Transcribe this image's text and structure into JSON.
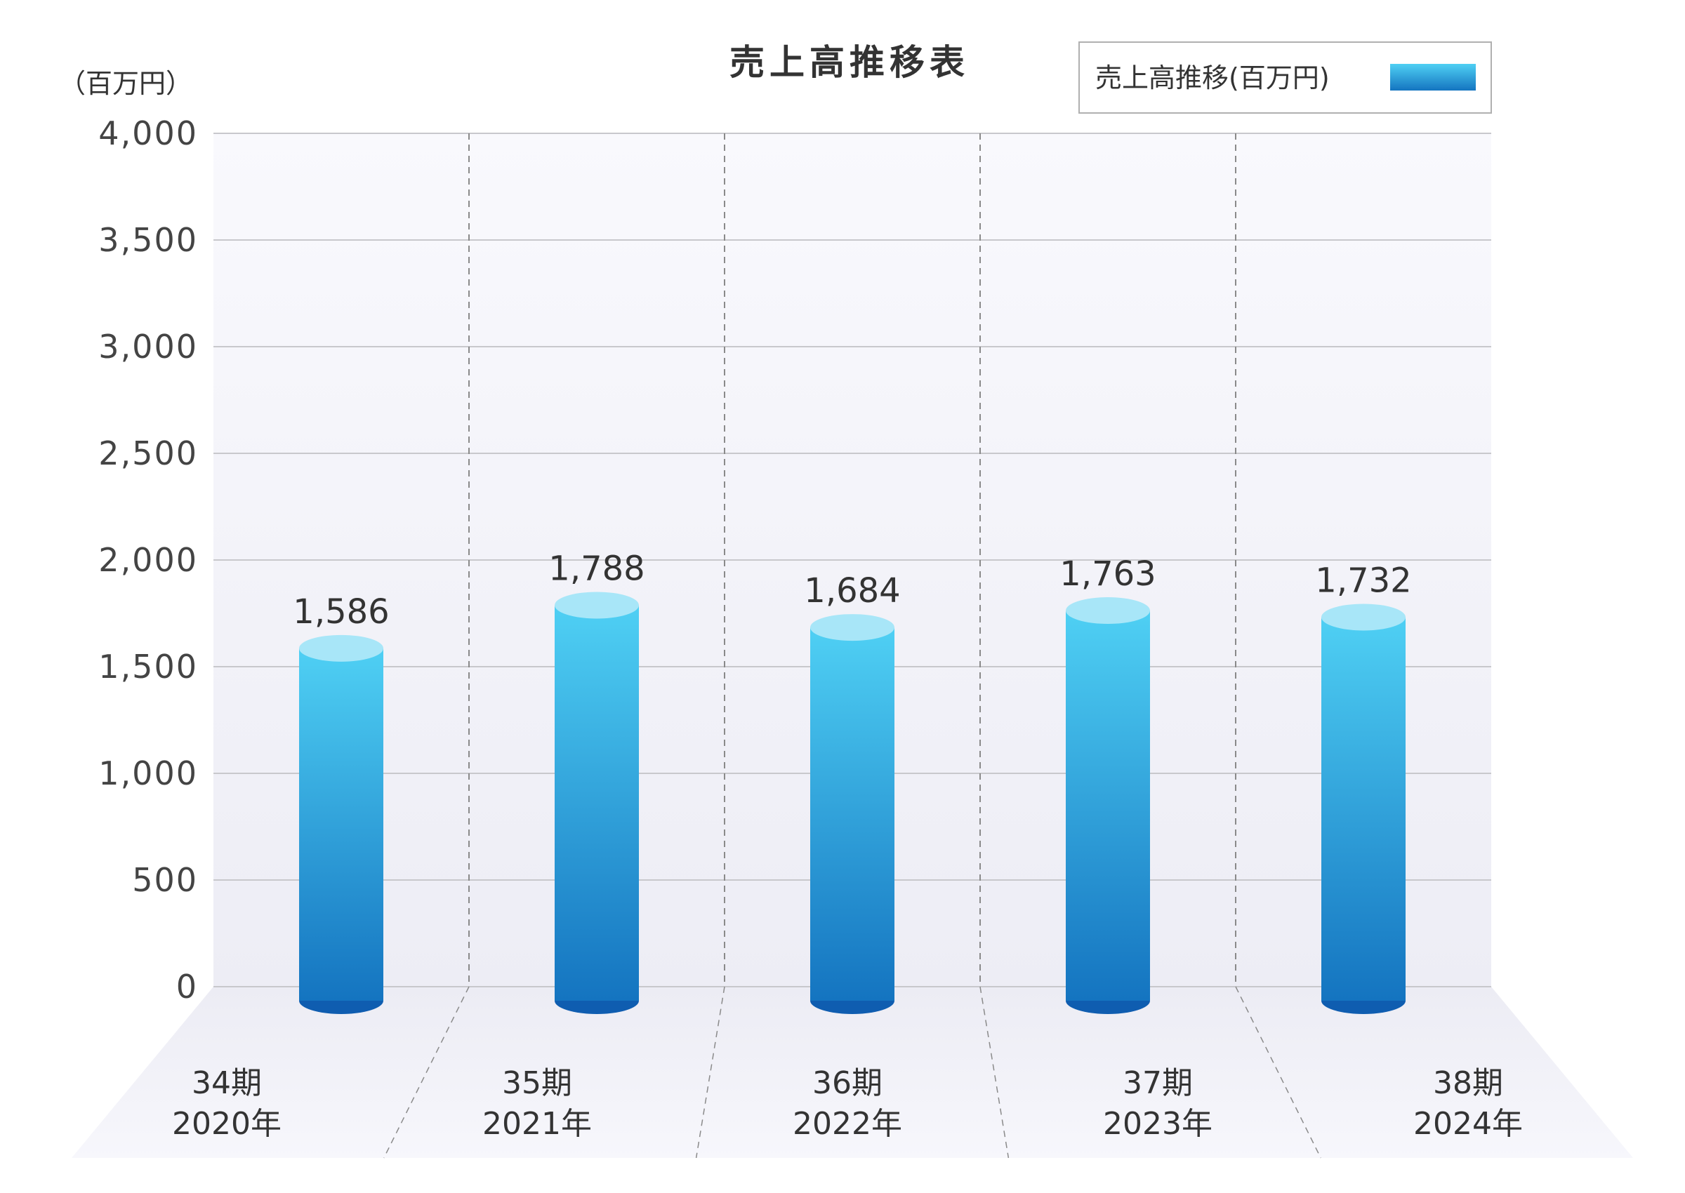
{
  "chart_data": {
    "type": "bar",
    "title": "売上高推移表",
    "unit": "（百万円）",
    "categories": [
      [
        "34期",
        "2020年"
      ],
      [
        "35期",
        "2021年"
      ],
      [
        "36期",
        "2022年"
      ],
      [
        "37期",
        "2023年"
      ],
      [
        "38期",
        "2024年"
      ]
    ],
    "series": [
      {
        "name": "売上高推移(百万円)",
        "values": [
          1586,
          1788,
          1684,
          1763,
          1732
        ]
      }
    ],
    "value_labels": [
      "1,586",
      "1,788",
      "1,684",
      "1,763",
      "1,732"
    ],
    "ylim": [
      0,
      4000
    ],
    "yticks": [
      0,
      500,
      1000,
      1500,
      2000,
      2500,
      3000,
      3500,
      4000
    ],
    "ytick_labels": [
      "0",
      "500",
      "1,000",
      "1,500",
      "2,000",
      "2,500",
      "3,000",
      "3,500",
      "4,000"
    ],
    "grid": true,
    "legend_position": "top-right",
    "colors": {
      "bar_top": "#4fd0f4",
      "bar_bottom": "#1474c0",
      "cap_top": "#a8e6f8",
      "cap_bottom": "#0f5db0",
      "gridline": "#c8c8cc",
      "plot_bg": "#f4f4f9"
    }
  }
}
